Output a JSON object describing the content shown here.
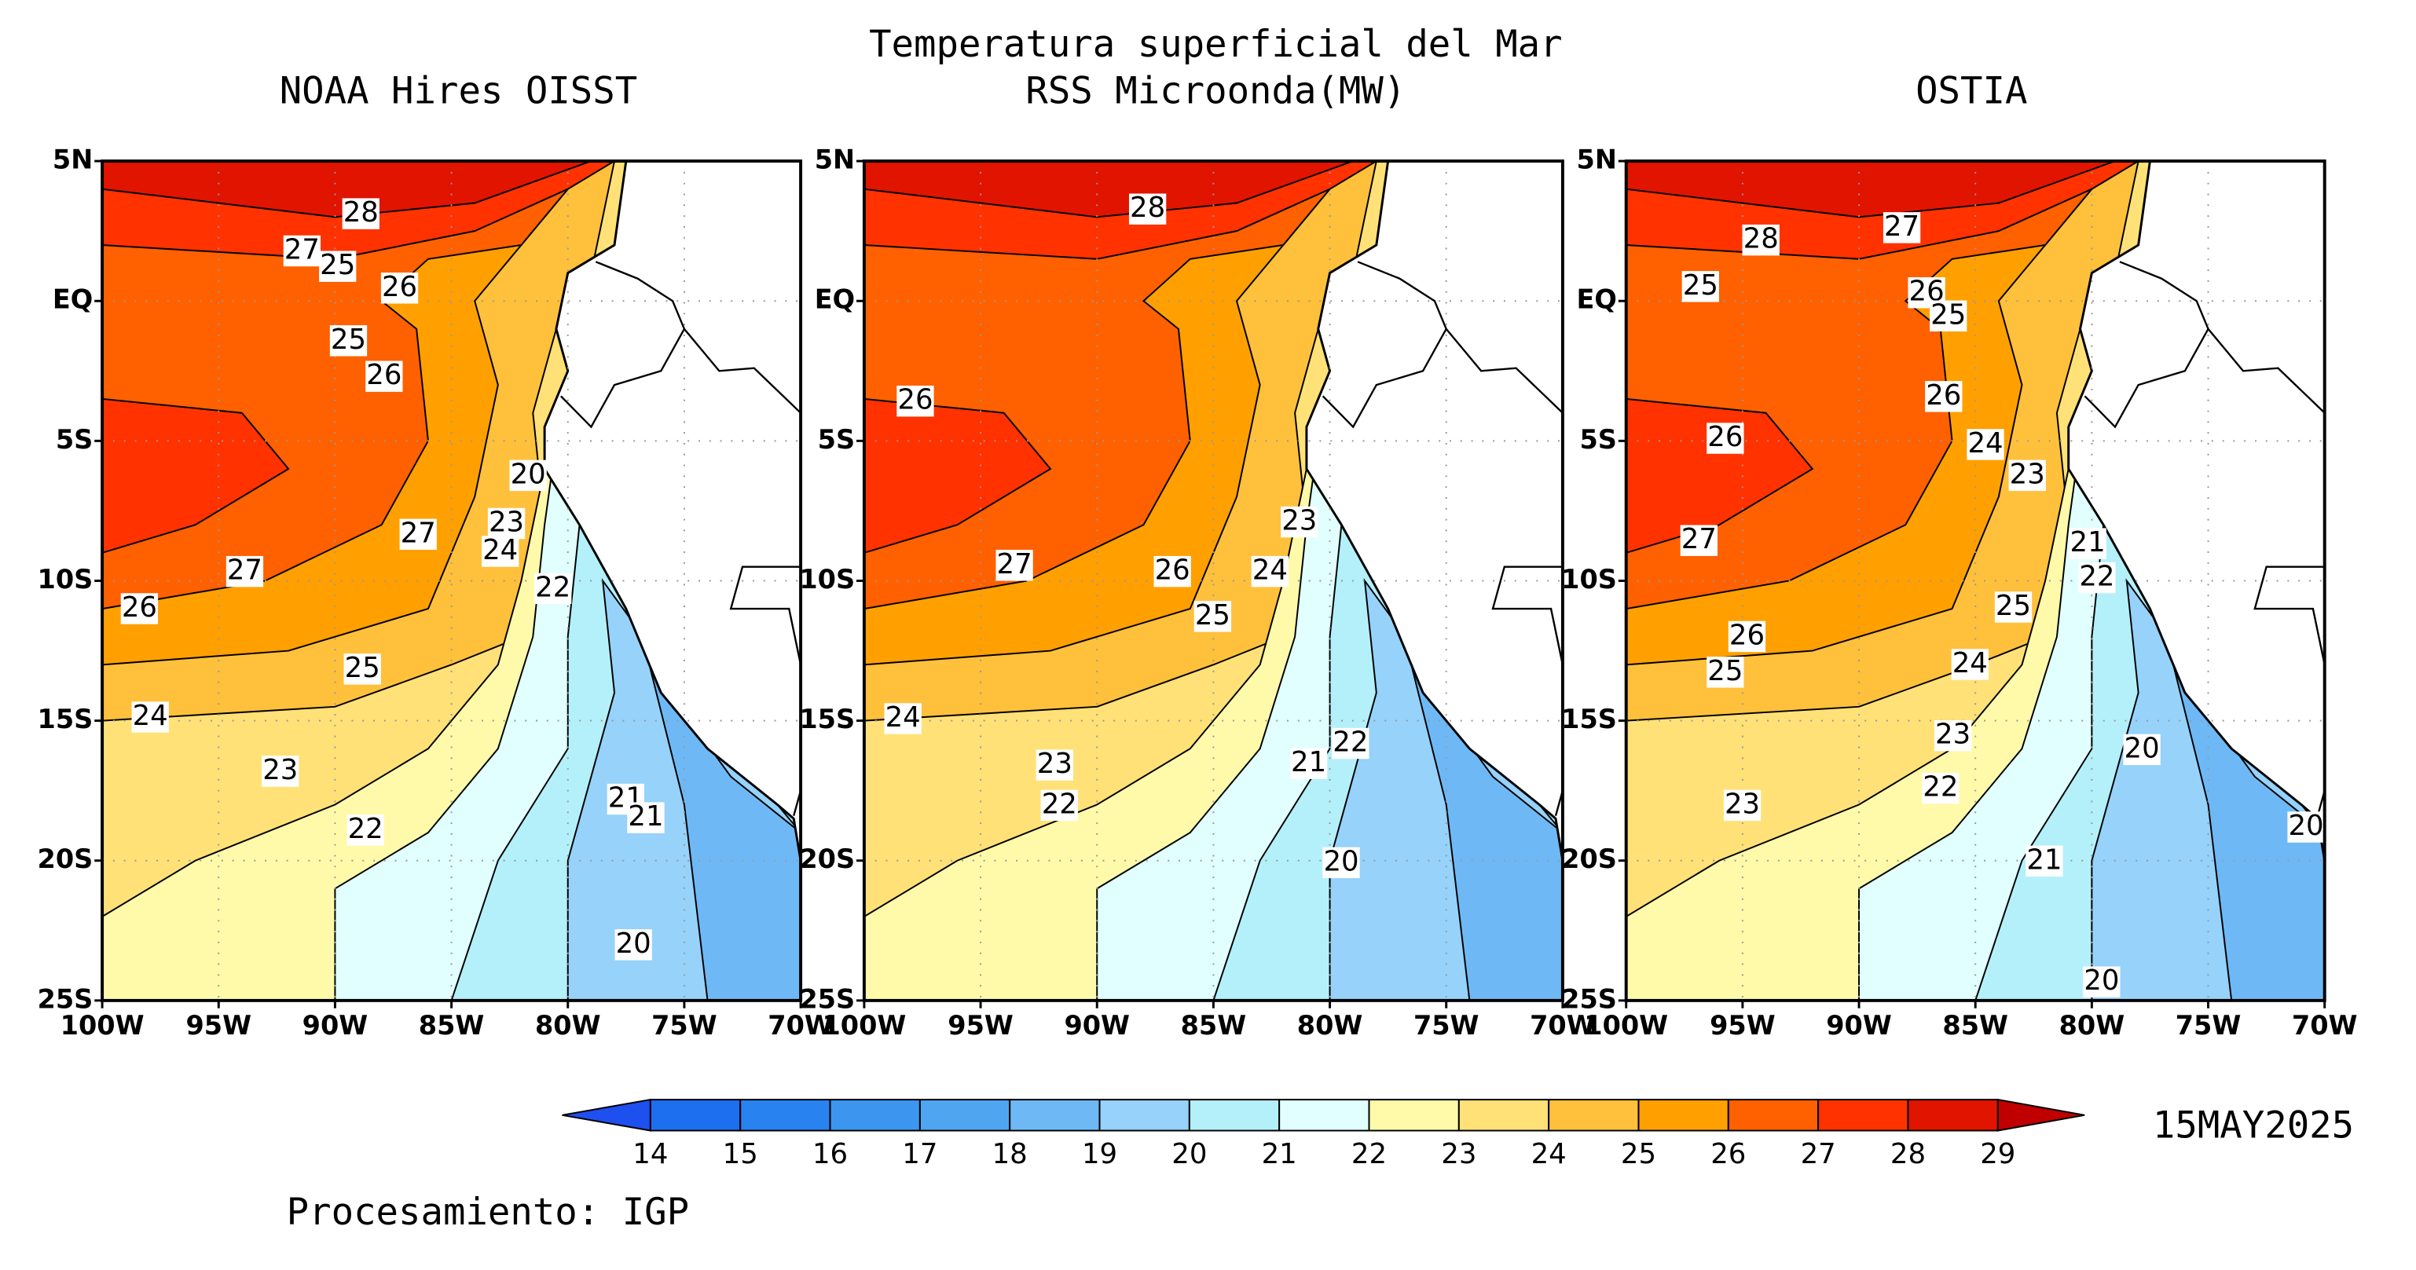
{
  "title": "Temperatura superficial del Mar",
  "panels": [
    {
      "title": "NOAA Hires OISST",
      "contour_labels": [
        28,
        27,
        25,
        26,
        25,
        26,
        20,
        23,
        27,
        24,
        27,
        22,
        26,
        25,
        24,
        23,
        22,
        21,
        21,
        20
      ]
    },
    {
      "title": "RSS Microonda(MW)",
      "contour_labels": [
        28,
        26,
        23,
        27,
        26,
        24,
        25,
        24,
        23,
        22,
        21,
        22,
        20
      ]
    },
    {
      "title": "OSTIA",
      "contour_labels": [
        27,
        28,
        26,
        25,
        25,
        26,
        26,
        24,
        23,
        27,
        21,
        22,
        25,
        26,
        25,
        24,
        23,
        20,
        22,
        23,
        20,
        21,
        20
      ]
    }
  ],
  "lat_ticks": [
    "5N",
    "EQ",
    "5S",
    "10S",
    "15S",
    "20S",
    "25S"
  ],
  "lon_ticks": [
    "100W",
    "95W",
    "90W",
    "85W",
    "80W",
    "75W",
    "70W"
  ],
  "colorbar": {
    "levels": [
      14,
      15,
      16,
      17,
      18,
      19,
      20,
      21,
      22,
      23,
      24,
      25,
      26,
      27,
      28,
      29
    ],
    "colors": [
      "#1e50f0",
      "#1e6ef0",
      "#2882f0",
      "#3c96f0",
      "#50a5f0",
      "#6eb9f5",
      "#96d2fa",
      "#b4f0fa",
      "#e1ffff",
      "#fffaaa",
      "#ffe178",
      "#ffc03c",
      "#ffa000",
      "#ff6000",
      "#ff3200",
      "#e11400",
      "#c00000"
    ]
  },
  "date": "15MAY2025",
  "credit": "Procesamiento: IGP"
}
